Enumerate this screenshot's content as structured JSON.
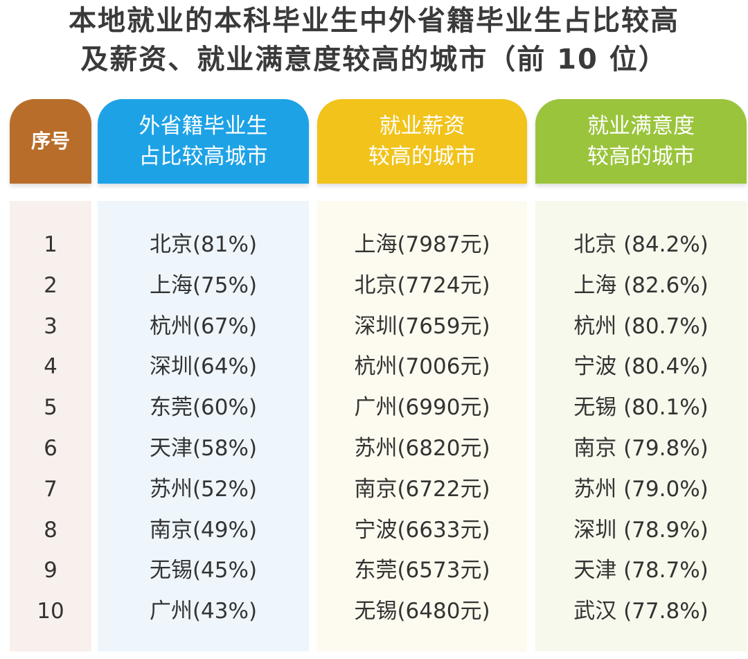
{
  "title": {
    "line1": "本地就业的本科毕业生中外省籍毕业生占比较高",
    "line2": "及薪资、就业满意度较高的城市（前 10 位）"
  },
  "headers": {
    "index": "序号",
    "col1_line1": "外省籍毕业生",
    "col1_line2": "占比较高城市",
    "col2_line1": "就业薪资",
    "col2_line2": "较高的城市",
    "col3_line1": "就业满意度",
    "col3_line2": "较高的城市"
  },
  "colors": {
    "index_header": "#b86e2a",
    "col1_header": "#1ea2e6",
    "col2_header": "#f1c31b",
    "col3_header": "#9ac43c"
  },
  "rows": [
    {
      "n": "1",
      "a": "北京(81%)",
      "b": "上海(7987元)",
      "c": "北京 (84.2%)"
    },
    {
      "n": "2",
      "a": "上海(75%)",
      "b": "北京(7724元)",
      "c": "上海 (82.6%)"
    },
    {
      "n": "3",
      "a": "杭州(67%)",
      "b": "深圳(7659元)",
      "c": "杭州 (80.7%)"
    },
    {
      "n": "4",
      "a": "深圳(64%)",
      "b": "杭州(7006元)",
      "c": "宁波 (80.4%)"
    },
    {
      "n": "5",
      "a": "东莞(60%)",
      "b": "广州(6990元)",
      "c": "无锡 (80.1%)"
    },
    {
      "n": "6",
      "a": "天津(58%)",
      "b": "苏州(6820元)",
      "c": "南京 (79.8%)"
    },
    {
      "n": "7",
      "a": "苏州(52%)",
      "b": "南京(6722元)",
      "c": "苏州 (79.0%)"
    },
    {
      "n": "8",
      "a": "南京(49%)",
      "b": "宁波(6633元)",
      "c": "深圳 (78.9%)"
    },
    {
      "n": "9",
      "a": "无锡(45%)",
      "b": "东莞(6573元)",
      "c": "天津 (78.7%)"
    },
    {
      "n": "10",
      "a": "广州(43%)",
      "b": "无锡(6480元)",
      "c": "武汉 (77.8%)"
    }
  ]
}
